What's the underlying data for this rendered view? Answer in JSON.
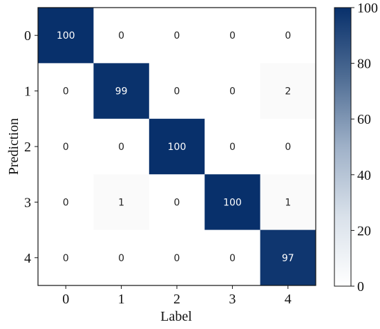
{
  "chart_data": {
    "type": "heatmap",
    "title": "",
    "xlabel": "Label",
    "ylabel": "Prediction",
    "x_categories": [
      "0",
      "1",
      "2",
      "3",
      "4"
    ],
    "y_categories": [
      "0",
      "1",
      "2",
      "3",
      "4"
    ],
    "values": [
      [
        100,
        0,
        0,
        0,
        0
      ],
      [
        0,
        99,
        0,
        0,
        2
      ],
      [
        0,
        0,
        100,
        0,
        0
      ],
      [
        0,
        1,
        0,
        100,
        1
      ],
      [
        0,
        0,
        0,
        0,
        97
      ]
    ],
    "colorbar": {
      "min": 0,
      "max": 100,
      "ticks": [
        "0",
        "20",
        "40",
        "60",
        "80",
        "100"
      ],
      "color_low": "#ffffff",
      "color_high": "#08306b"
    },
    "grid": false
  }
}
